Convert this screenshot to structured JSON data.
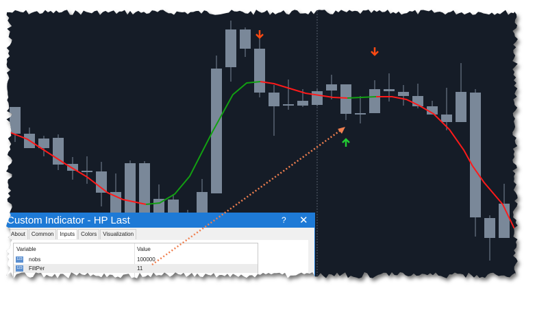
{
  "chart_data": {
    "type": "candlestick",
    "title": "",
    "value_scale": "unlabelled (no axis shown)",
    "candle_color": "#7a8899",
    "background": "#151c27",
    "candles_hocl": [
      [
        244,
        244,
        205,
        193
      ],
      [
        214,
        205,
        184,
        184
      ],
      [
        202,
        198,
        184,
        172
      ],
      [
        204,
        199,
        160,
        152
      ],
      [
        171,
        161,
        151,
        138
      ],
      [
        172,
        151,
        150,
        132
      ],
      [
        164,
        150,
        119,
        99
      ],
      [
        147,
        120,
        85,
        85
      ],
      [
        166,
        162,
        85,
        85
      ],
      [
        165,
        162,
        85,
        85
      ],
      [
        131,
        110,
        85,
        85
      ],
      [
        117,
        109,
        85,
        85
      ],
      [
        94,
        88,
        85,
        85
      ],
      [
        139,
        120,
        85,
        85
      ],
      [
        319,
        300,
        118,
        118
      ],
      [
        370,
        357,
        302,
        281
      ],
      [
        360,
        357,
        329,
        317
      ],
      [
        344,
        329,
        265,
        258
      ],
      [
        276,
        265,
        245,
        202
      ],
      [
        284,
        248,
        246,
        240
      ],
      [
        270,
        253,
        246,
        244
      ],
      [
        270,
        267,
        247,
        245
      ],
      [
        291,
        277,
        268,
        255
      ],
      [
        277,
        277,
        234,
        225
      ],
      [
        260,
        235,
        234,
        220
      ],
      [
        283,
        270,
        235,
        235
      ],
      [
        293,
        270,
        267,
        252
      ],
      [
        276,
        266,
        260,
        246
      ],
      [
        278,
        260,
        245,
        242
      ],
      [
        253,
        245,
        233,
        233
      ],
      [
        272,
        233,
        222,
        210
      ],
      [
        308,
        266,
        222,
        222
      ],
      [
        270,
        265,
        83,
        55
      ],
      [
        86,
        82,
        53,
        20
      ],
      [
        132,
        103,
        53,
        53
      ]
    ],
    "filter_line": [
      {
        "trend": "down",
        "color": "#ff1a1a",
        "points": [
          [
            0.52,
            208
          ],
          [
            1.86,
            197
          ],
          [
            2.8,
            184
          ],
          [
            4.57,
            160
          ],
          [
            6,
            142
          ],
          [
            7.43,
            119
          ],
          [
            8.5,
            109
          ],
          [
            10.1,
            102
          ]
        ]
      },
      {
        "trend": "up",
        "color": "#12a012",
        "points": [
          [
            10.1,
            102
          ],
          [
            11.05,
            104
          ],
          [
            12.1,
            117
          ],
          [
            13.14,
            143
          ],
          [
            14.7,
            207
          ],
          [
            16.14,
            262
          ],
          [
            17.1,
            279
          ],
          [
            18.05,
            281
          ]
        ]
      },
      {
        "trend": "down",
        "color": "#ff1a1a",
        "points": [
          [
            18.05,
            281
          ],
          [
            19,
            278
          ],
          [
            21.2,
            264
          ],
          [
            23.1,
            258
          ],
          [
            24.1,
            257
          ]
        ]
      },
      {
        "trend": "up",
        "color": "#12a012",
        "points": [
          [
            24.1,
            257
          ],
          [
            25.1,
            258
          ],
          [
            26.1,
            259
          ]
        ]
      },
      {
        "trend": "down",
        "color": "#ff1a1a",
        "points": [
          [
            26.1,
            259
          ],
          [
            27.2,
            259
          ],
          [
            28.2,
            255
          ],
          [
            29.1,
            246
          ],
          [
            30.1,
            234
          ],
          [
            31.2,
            211
          ],
          [
            32.2,
            181
          ],
          [
            32.8,
            158
          ],
          [
            33.6,
            134
          ],
          [
            34.9,
            102
          ],
          [
            35.7,
            67
          ]
        ]
      }
    ],
    "signals": [
      {
        "type": "sell-arrow",
        "index": 18,
        "value": 350,
        "color": "#ff4a12"
      },
      {
        "type": "sell-arrow",
        "index": 26,
        "value": 325,
        "color": "#ff4a12"
      },
      {
        "type": "buy-arrow",
        "index": 24,
        "value": 192,
        "color": "#22cc33"
      }
    ],
    "period_separator_index": 22,
    "annotation_arrow_color": "#f08050"
  },
  "dialog": {
    "title": "Custom Indicator - HP Last",
    "help": "?",
    "close": "✕",
    "tabs": [
      "About",
      "Common",
      "Inputs",
      "Colors",
      "Visualization"
    ],
    "active_tab": "Inputs",
    "table": {
      "headers": [
        "Variable",
        "Value"
      ],
      "rows": [
        {
          "icon": "123",
          "variable": "nobs",
          "value": "100000"
        },
        {
          "icon": "123",
          "variable": "FiltPer",
          "value": "11"
        }
      ]
    }
  }
}
